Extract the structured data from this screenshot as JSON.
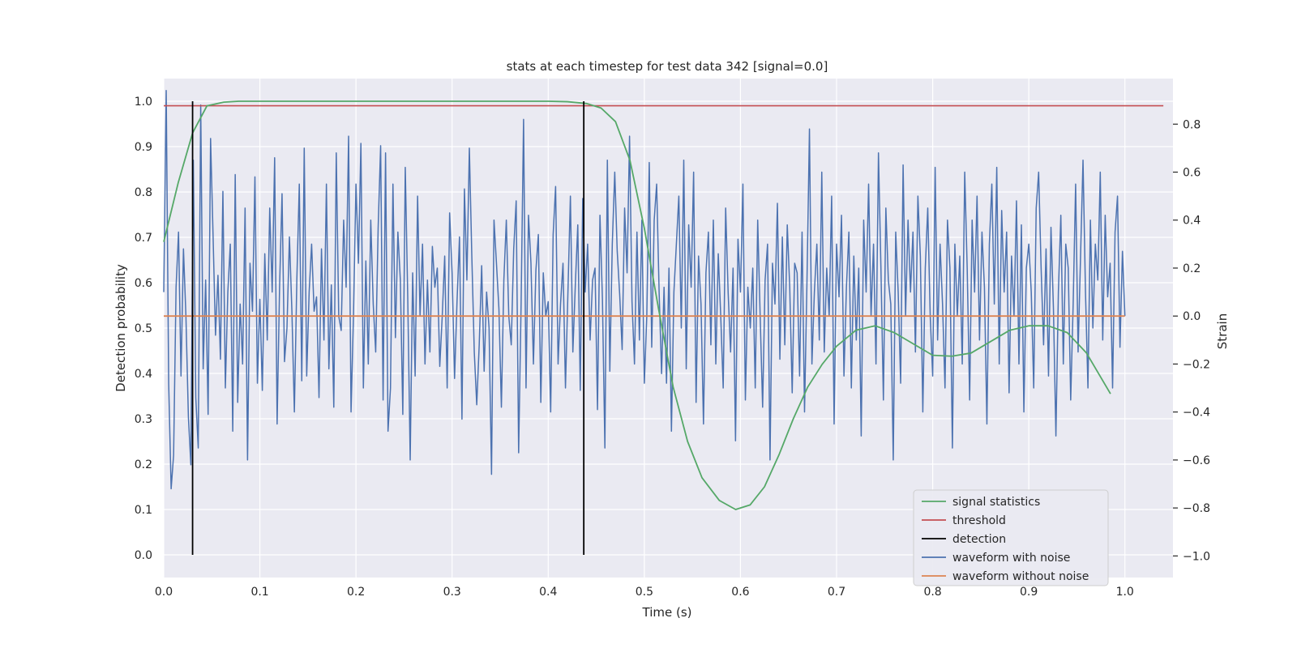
{
  "chart_data": {
    "type": "line",
    "title": "stats at each timestep for test data 342 [signal=0.0]",
    "xlabel": "Time (s)",
    "ylabel": "Detection probability",
    "y2label": "Strain",
    "xlim": [
      0.0,
      1.05
    ],
    "ylim": [
      -0.05,
      1.05
    ],
    "y2lim": [
      -1.09,
      0.99
    ],
    "xticks": [
      "0.0",
      "0.1",
      "0.2",
      "0.3",
      "0.4",
      "0.5",
      "0.6",
      "0.7",
      "0.8",
      "0.9",
      "1.0"
    ],
    "yticks": [
      "0.0",
      "0.1",
      "0.2",
      "0.3",
      "0.4",
      "0.5",
      "0.6",
      "0.7",
      "0.8",
      "0.9",
      "1.0"
    ],
    "y2ticks": [
      "−1.0",
      "−0.8",
      "−0.6",
      "−0.4",
      "−0.2",
      "0.0",
      "0.2",
      "0.4",
      "0.6",
      "0.8"
    ],
    "grid": true,
    "legend_position": "lower-right",
    "colors": {
      "plot_background": "#eaeaf2",
      "grid": "#ffffff",
      "signal_statistics": "#55a868",
      "threshold": "#c44e52",
      "detection": "#000000",
      "waveform_with_noise": "#4c72b0",
      "waveform_without_noise": "#dd8452"
    },
    "series": [
      {
        "name": "signal statistics",
        "axis": "left",
        "x": [
          0.0,
          0.015,
          0.03,
          0.045,
          0.0625,
          0.078,
          0.1,
          0.2,
          0.3,
          0.4,
          0.42,
          0.44,
          0.455,
          0.47,
          0.485,
          0.5,
          0.515,
          0.53,
          0.545,
          0.56,
          0.578,
          0.595,
          0.61,
          0.625,
          0.64,
          0.655,
          0.67,
          0.685,
          0.7,
          0.72,
          0.74,
          0.76,
          0.78,
          0.8,
          0.82,
          0.84,
          0.86,
          0.88,
          0.9,
          0.92,
          0.94,
          0.96,
          0.985
        ],
        "y": [
          0.69,
          0.82,
          0.93,
          0.99,
          0.998,
          1.0,
          1.0,
          1.0,
          1.0,
          1.0,
          0.999,
          0.995,
          0.985,
          0.955,
          0.87,
          0.72,
          0.54,
          0.37,
          0.25,
          0.17,
          0.12,
          0.1,
          0.11,
          0.15,
          0.22,
          0.3,
          0.37,
          0.42,
          0.46,
          0.495,
          0.505,
          0.49,
          0.465,
          0.44,
          0.438,
          0.445,
          0.47,
          0.495,
          0.505,
          0.505,
          0.49,
          0.445,
          0.355
        ]
      },
      {
        "name": "threshold",
        "axis": "left",
        "x": [
          0.0,
          1.04
        ],
        "y": [
          0.99,
          0.99
        ]
      },
      {
        "name": "detection",
        "axis": "left",
        "x": [
          0.03,
          0.437
        ],
        "y": [
          1.0,
          1.0
        ]
      },
      {
        "name": "waveform with noise",
        "axis": "right",
        "x_start": 0.0,
        "x_end": 1.0,
        "y": [
          0.1,
          0.94,
          -0.28,
          -0.72,
          -0.58,
          0.12,
          0.35,
          -0.25,
          0.28,
          0.0,
          -0.42,
          -0.62,
          0.65,
          -0.34,
          -0.55,
          0.88,
          -0.22,
          0.15,
          -0.41,
          0.74,
          0.34,
          -0.08,
          0.17,
          -0.18,
          0.52,
          -0.3,
          0.1,
          0.3,
          -0.48,
          0.59,
          -0.36,
          0.05,
          -0.2,
          0.45,
          -0.6,
          0.22,
          0.02,
          0.58,
          -0.28,
          0.07,
          -0.31,
          0.26,
          -0.1,
          0.45,
          0.1,
          0.66,
          -0.45,
          0.12,
          0.51,
          -0.19,
          -0.05,
          0.33,
          0.02,
          -0.4,
          0.15,
          0.55,
          -0.27,
          0.7,
          -0.25,
          0.1,
          0.3,
          0.02,
          0.08,
          -0.34,
          0.28,
          -0.1,
          0.55,
          -0.22,
          0.13,
          -0.38,
          0.68,
          0.0,
          -0.06,
          0.4,
          0.12,
          0.75,
          -0.4,
          0.01,
          0.55,
          0.22,
          0.72,
          -0.3,
          0.23,
          -0.2,
          0.4,
          0.05,
          -0.15,
          0.37,
          0.71,
          -0.35,
          0.68,
          -0.48,
          -0.3,
          0.55,
          -0.09,
          0.35,
          0.15,
          -0.41,
          0.62,
          0.08,
          -0.6,
          0.18,
          -0.25,
          0.5,
          0.0,
          0.3,
          -0.2,
          0.15,
          -0.15,
          0.29,
          0.12,
          0.2,
          -0.21,
          0.0,
          0.25,
          -0.3,
          0.43,
          0.18,
          -0.26,
          0.06,
          0.33,
          -0.43,
          0.53,
          0.15,
          0.7,
          0.25,
          -0.15,
          -0.37,
          -0.12,
          0.21,
          -0.23,
          0.1,
          -0.05,
          -0.66,
          0.4,
          0.22,
          0.03,
          -0.38,
          0.15,
          0.4,
          0.0,
          -0.12,
          0.28,
          0.48,
          -0.57,
          0.05,
          0.82,
          -0.3,
          0.42,
          0.22,
          -0.2,
          0.19,
          0.34,
          -0.36,
          0.18,
          0.0,
          0.06,
          -0.4,
          0.34,
          0.54,
          -0.2,
          0.05,
          0.22,
          -0.3,
          0.1,
          0.5,
          -0.15,
          0.13,
          0.38,
          -0.31,
          0.49,
          0.1,
          0.3,
          -0.1,
          0.15,
          0.2,
          -0.39,
          0.42,
          0.07,
          -0.55,
          0.65,
          -0.23,
          0.3,
          0.6,
          0.27,
          0.09,
          -0.14,
          0.45,
          0.18,
          0.75,
          0.06,
          -0.2,
          0.35,
          -0.1,
          0.4,
          -0.28,
          0.0,
          0.64,
          -0.13,
          0.4,
          0.55,
          0.1,
          -0.24,
          0.12,
          -0.28,
          0.2,
          -0.48,
          0.1,
          0.3,
          0.5,
          -0.05,
          0.65,
          -0.22,
          0.38,
          0.12,
          0.6,
          -0.36,
          0.25,
          0.05,
          -0.45,
          0.18,
          0.35,
          -0.12,
          0.4,
          -0.2,
          0.26,
          0.0,
          -0.3,
          0.45,
          0.1,
          -0.15,
          0.2,
          -0.52,
          0.32,
          0.1,
          0.55,
          -0.35,
          0.12,
          -0.05,
          0.2,
          -0.3,
          0.4,
          0.0,
          -0.38,
          0.15,
          0.3,
          -0.6,
          0.22,
          0.05,
          0.47,
          -0.18,
          0.33,
          -0.12,
          0.38,
          0.12,
          -0.32,
          0.22,
          0.18,
          -0.25,
          0.35,
          -0.4,
          0.15,
          0.78,
          -0.2,
          0.1,
          0.3,
          -0.1,
          0.6,
          -0.15,
          0.2,
          0.0,
          0.5,
          -0.45,
          0.3,
          0.08,
          0.42,
          -0.25,
          0.12,
          0.35,
          -0.3,
          0.25,
          -0.1,
          0.2,
          -0.5,
          0.4,
          0.1,
          0.55,
          0.0,
          0.3,
          -0.2,
          0.68,
          0.2,
          -0.35,
          0.45,
          0.15,
          0.05,
          -0.6,
          0.35,
          0.1,
          -0.28,
          0.63,
          0.0,
          0.4,
          0.1,
          0.35,
          -0.15,
          0.5,
          0.25,
          -0.4,
          0.2,
          0.45,
          0.0,
          -0.25,
          0.62,
          -0.1,
          0.3,
          0.05,
          -0.3,
          0.4,
          0.2,
          -0.55,
          0.3,
          0.0,
          0.25,
          -0.2,
          0.6,
          0.2,
          -0.35,
          0.4,
          0.1,
          0.5,
          -0.1,
          0.35,
          0.12,
          -0.45,
          0.3,
          0.55,
          0.05,
          0.62,
          -0.2,
          0.44,
          0.1,
          0.35,
          -0.32,
          0.25,
          0.0,
          0.48,
          -0.2,
          0.38,
          -0.4,
          0.2,
          0.3,
          0.1,
          -0.3,
          0.45,
          0.6,
          0.2,
          -0.12,
          0.28,
          -0.25,
          0.37,
          0.03,
          -0.5,
          0.1,
          0.42,
          -0.2,
          0.3,
          0.2,
          -0.35,
          0.05,
          0.55,
          -0.15,
          0.25,
          0.65,
          0.1,
          -0.3,
          0.4,
          -0.05,
          0.3,
          0.15,
          0.6,
          -0.1,
          0.42,
          0.08,
          0.22,
          -0.3,
          0.35,
          0.5,
          -0.13,
          0.27,
          0.0
        ]
      },
      {
        "name": "waveform without noise",
        "axis": "right",
        "x": [
          0.0,
          1.0
        ],
        "y": [
          0.0,
          0.0
        ]
      }
    ]
  }
}
